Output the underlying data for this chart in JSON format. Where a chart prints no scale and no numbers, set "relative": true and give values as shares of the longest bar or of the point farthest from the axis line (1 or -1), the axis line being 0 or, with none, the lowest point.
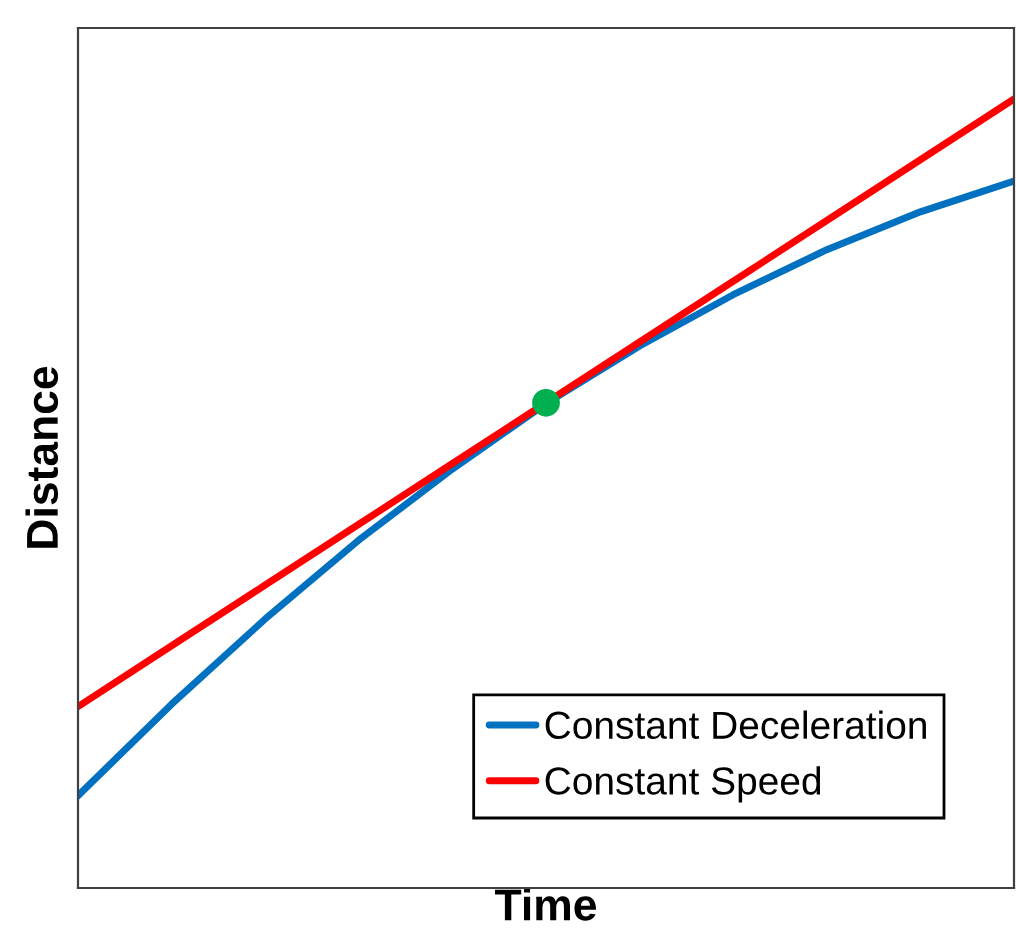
{
  "chart_data": {
    "type": "line",
    "relative": true,
    "xlabel": "Time",
    "ylabel": "Distance",
    "categories": [
      null,
      null,
      null,
      null,
      null,
      null,
      null,
      null,
      null,
      null,
      null
    ],
    "series": [
      {
        "name": "Constant Deceleration",
        "color": "#0070c0",
        "values": [
          0.117,
          0.233,
          0.341,
          0.441,
          0.531,
          0.614,
          0.687,
          0.752,
          0.809,
          0.857,
          0.896
        ]
      },
      {
        "name": "Constant Speed",
        "color": "#ff0000",
        "values": [
          0.23,
          0.307,
          0.384,
          0.461,
          0.538,
          0.615,
          0.692,
          0.769,
          0.846,
          0.923,
          1.0
        ]
      },
      {
        "color": "#00b050",
        "values": [
          null,
          null,
          null,
          null,
          null,
          0.615,
          null,
          null,
          null,
          null,
          null
        ],
        "marker": "circle"
      }
    ],
    "legend": "bottom right",
    "tick_labels": false
  }
}
